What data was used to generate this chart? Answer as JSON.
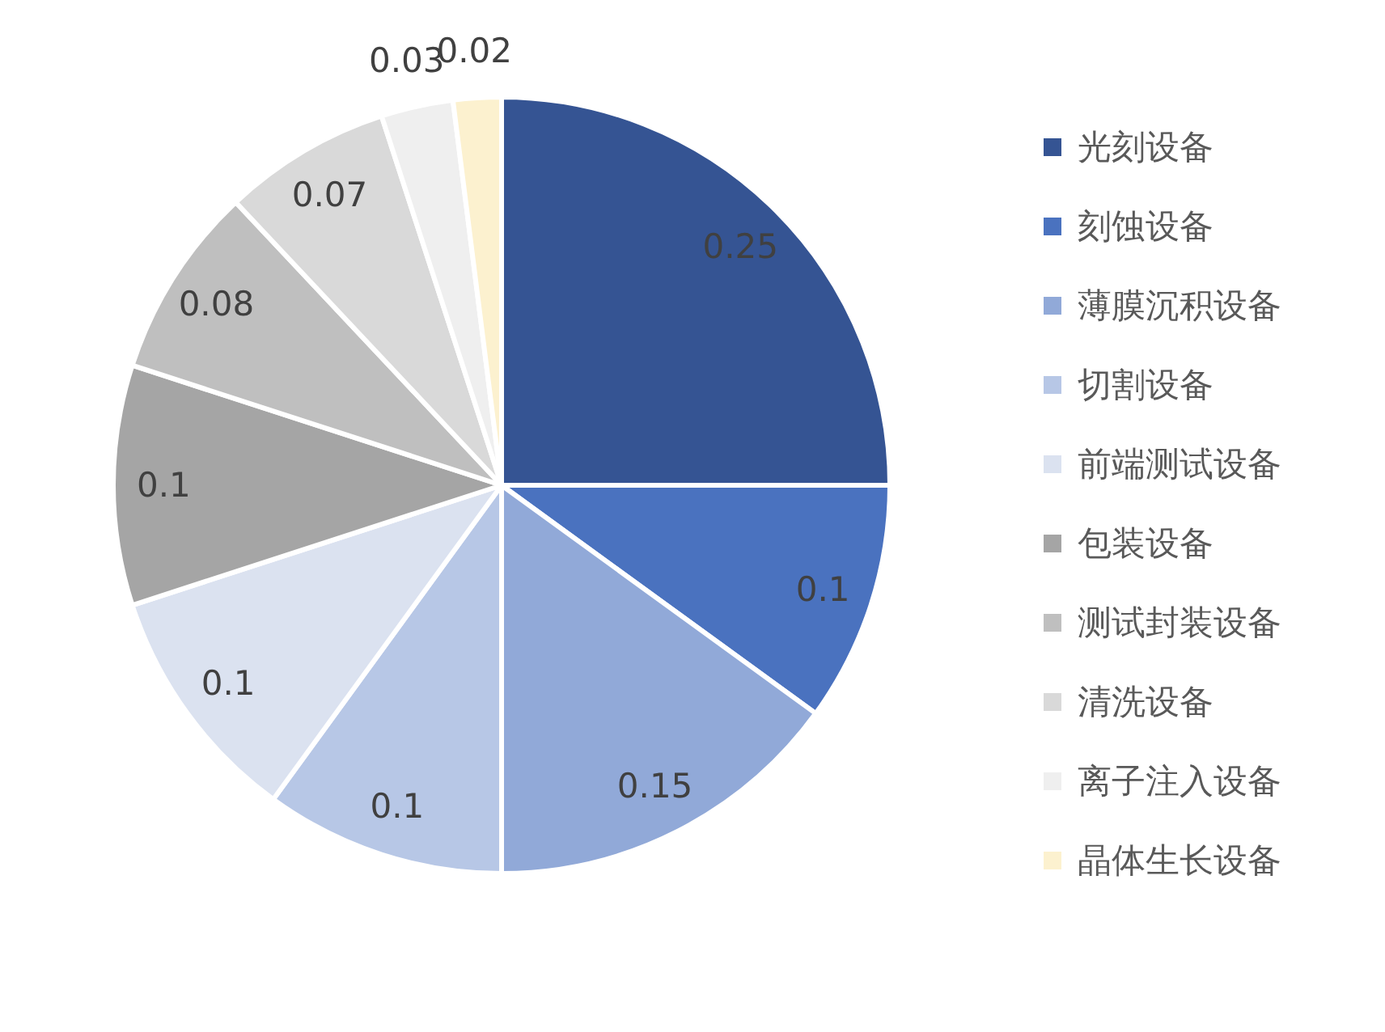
{
  "chart_data": {
    "type": "pie",
    "categories": [
      "光刻设备",
      "刻蚀设备",
      "薄膜沉积设备",
      "切割设备",
      "前端测试设备",
      "包装设备",
      "测试封装设备",
      "清洗设备",
      "离子注入设备",
      "晶体生长设备"
    ],
    "values": [
      0.25,
      0.1,
      0.15,
      0.1,
      0.1,
      0.1,
      0.08,
      0.07,
      0.03,
      0.02
    ],
    "colors": [
      "#355493",
      "#4a72bf",
      "#91a9d8",
      "#b7c7e6",
      "#dbe2f0",
      "#a5a5a5",
      "#bfbfbf",
      "#d9d9d9",
      "#efefef",
      "#fcf1cf"
    ],
    "data_labels": true,
    "legend": "right"
  }
}
